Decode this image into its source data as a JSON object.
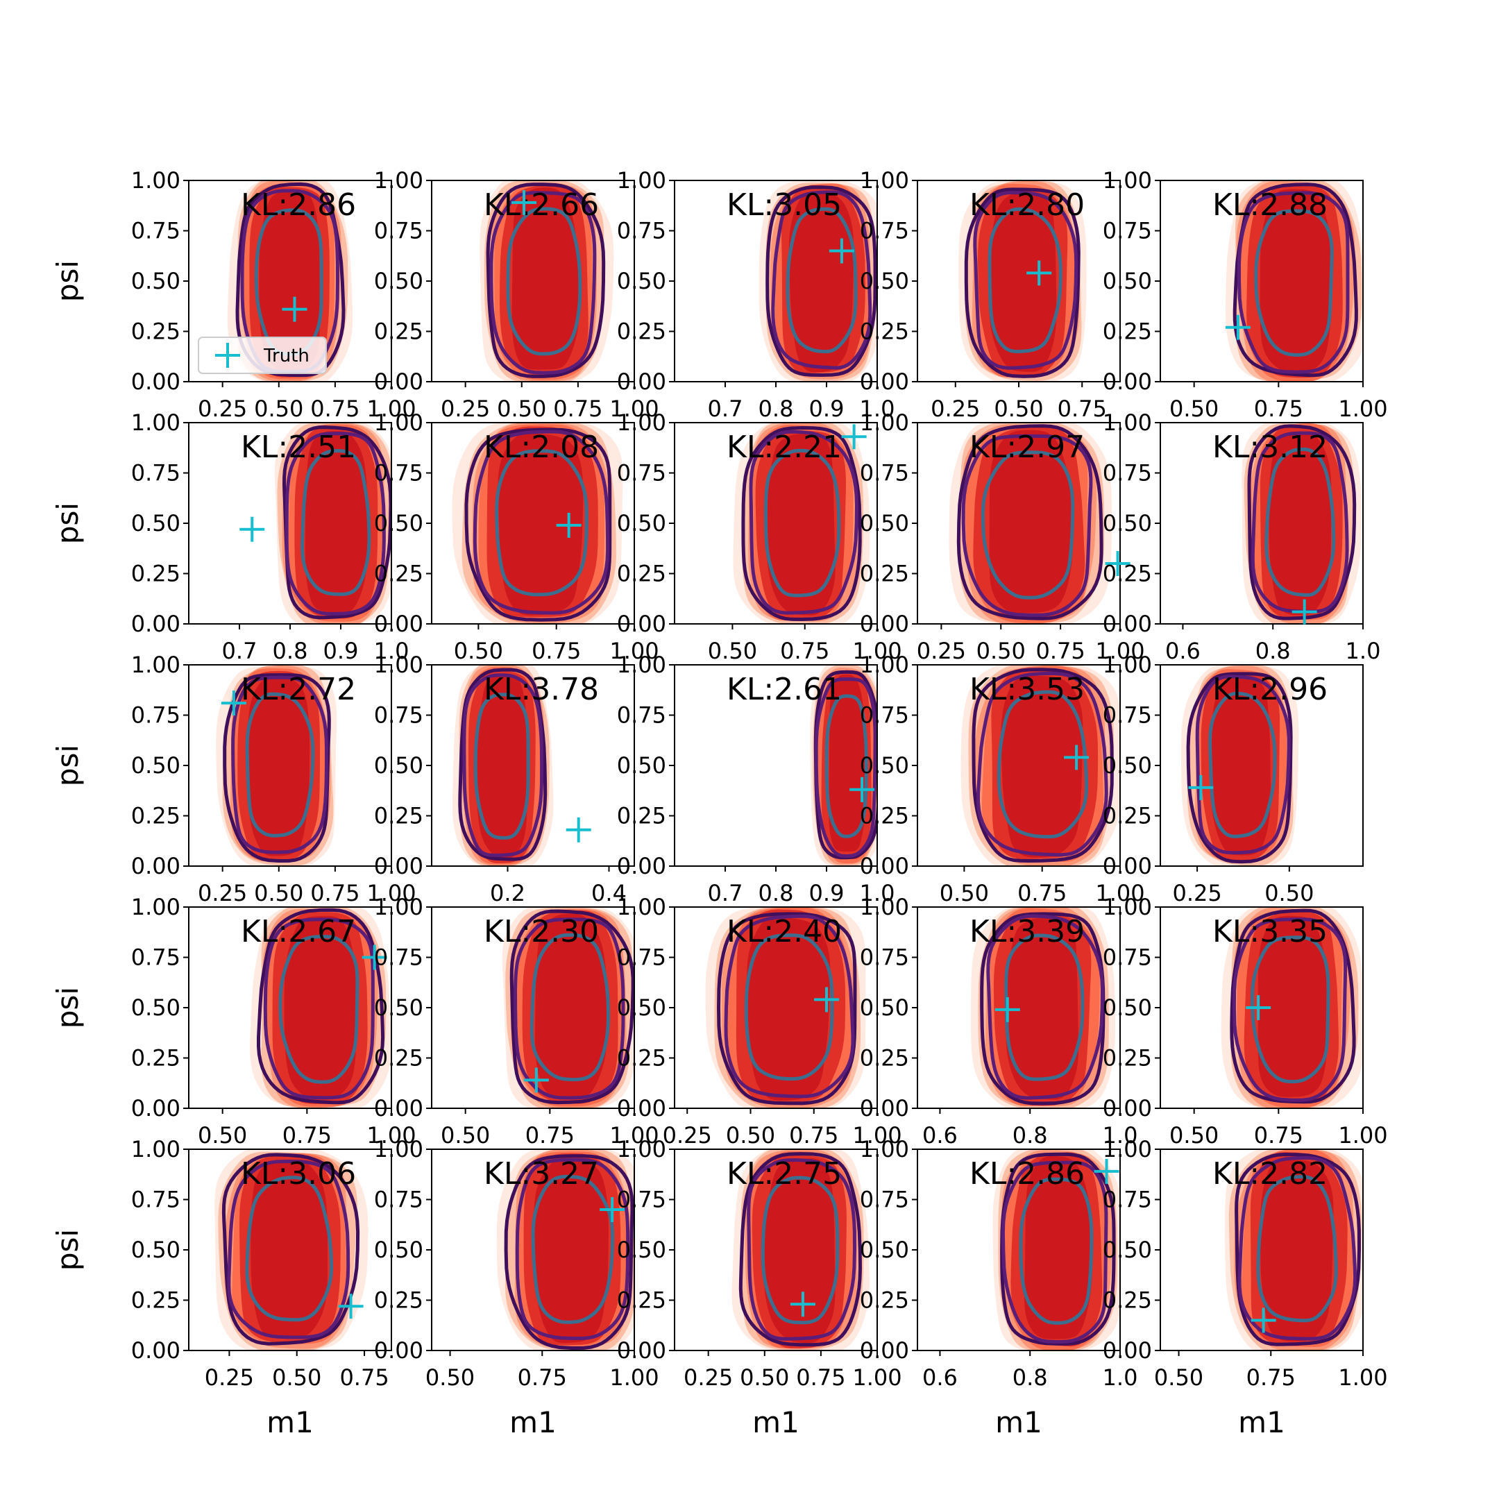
{
  "chart_data": {
    "type": "scatter",
    "layout": {
      "rows": 5,
      "cols": 5
    },
    "xlabel": "m1",
    "ylabel": "psi",
    "legend": {
      "label": "Truth",
      "placement": "lower-left",
      "panel": 0
    },
    "colors": {
      "fill_levels": [
        "#fee5d9",
        "#fcbba1",
        "#fc9272",
        "#fb6a4a",
        "#de2d26",
        "#cb181d"
      ],
      "outer_contour": "#3f0f5c",
      "mid_contour": "#5b1e78",
      "inner_contour": "#3c6e8f",
      "truth_marker": "#17becf"
    },
    "ylim": [
      0,
      1
    ],
    "y_ticks": [
      "0.00",
      "0.25",
      "0.50",
      "0.75",
      "1.00"
    ],
    "panels": [
      {
        "kl": "KL:2.86",
        "xlim": [
          0.1,
          1.0
        ],
        "x_ticks": [
          [
            "0.25",
            0.25
          ],
          [
            "0.50",
            0.5
          ],
          [
            "0.75",
            0.75
          ],
          [
            "1.00",
            1.0
          ]
        ],
        "truth": [
          0.57,
          0.36
        ],
        "center": [
          0.55,
          0.5
        ],
        "half_width": [
          0.22,
          0.46
        ]
      },
      {
        "kl": "KL:2.66",
        "xlim": [
          0.1,
          1.0
        ],
        "x_ticks": [
          [
            "0.25",
            0.25
          ],
          [
            "0.50",
            0.5
          ],
          [
            "0.75",
            0.75
          ],
          [
            "1.00",
            1.0
          ]
        ],
        "truth": [
          0.51,
          0.89
        ],
        "center": [
          0.6,
          0.5
        ],
        "half_width": [
          0.24,
          0.46
        ]
      },
      {
        "kl": "KL:3.05",
        "xlim": [
          0.6,
          1.0
        ],
        "x_ticks": [
          [
            "0.7",
            0.7
          ],
          [
            "0.8",
            0.8
          ],
          [
            "0.9",
            0.9
          ],
          [
            "1.0",
            1.0
          ]
        ],
        "truth": [
          0.93,
          0.65
        ],
        "center": [
          0.89,
          0.5
        ],
        "half_width": [
          0.1,
          0.45
        ]
      },
      {
        "kl": "KL:2.80",
        "xlim": [
          0.1,
          0.9
        ],
        "x_ticks": [
          [
            "0.25",
            0.25
          ],
          [
            "0.50",
            0.5
          ],
          [
            "0.75",
            0.75
          ]
        ],
        "truth": [
          0.58,
          0.54
        ],
        "center": [
          0.52,
          0.5
        ],
        "half_width": [
          0.21,
          0.45
        ]
      },
      {
        "kl": "KL:2.88",
        "xlim": [
          0.4,
          1.0
        ],
        "x_ticks": [
          [
            "0.50",
            0.5
          ],
          [
            "0.75",
            0.75
          ],
          [
            "1.00",
            1.0
          ]
        ],
        "truth": [
          0.63,
          0.27
        ],
        "center": [
          0.8,
          0.5
        ],
        "half_width": [
          0.17,
          0.46
        ]
      },
      {
        "kl": "KL:2.51",
        "xlim": [
          0.6,
          1.0
        ],
        "x_ticks": [
          [
            "0.7",
            0.7
          ],
          [
            "0.8",
            0.8
          ],
          [
            "0.9",
            0.9
          ],
          [
            "1.0",
            1.0
          ]
        ],
        "truth": [
          0.725,
          0.47
        ],
        "center": [
          0.89,
          0.5
        ],
        "half_width": [
          0.1,
          0.46
        ]
      },
      {
        "kl": "KL:2.08",
        "xlim": [
          0.35,
          1.0
        ],
        "x_ticks": [
          [
            "0.50",
            0.5
          ],
          [
            "0.75",
            0.75
          ],
          [
            "1.00",
            1.0
          ]
        ],
        "truth": [
          0.79,
          0.49
        ],
        "center": [
          0.7,
          0.5
        ],
        "half_width": [
          0.22,
          0.46
        ]
      },
      {
        "kl": "KL:2.21",
        "xlim": [
          0.3,
          1.0
        ],
        "x_ticks": [
          [
            "0.50",
            0.5
          ],
          [
            "0.75",
            0.75
          ],
          [
            "1.00",
            1.0
          ]
        ],
        "truth": [
          0.92,
          0.93
        ],
        "center": [
          0.74,
          0.5
        ],
        "half_width": [
          0.19,
          0.46
        ]
      },
      {
        "kl": "KL:2.97",
        "xlim": [
          0.15,
          1.0
        ],
        "x_ticks": [
          [
            "0.25",
            0.25
          ],
          [
            "0.50",
            0.5
          ],
          [
            "0.75",
            0.75
          ],
          [
            "1.00",
            1.0
          ]
        ],
        "truth": [
          0.99,
          0.3
        ],
        "center": [
          0.62,
          0.5
        ],
        "half_width": [
          0.28,
          0.46
        ]
      },
      {
        "kl": "KL:3.12",
        "xlim": [
          0.55,
          1.0
        ],
        "x_ticks": [
          [
            "0.6",
            0.6
          ],
          [
            "0.8",
            0.8
          ],
          [
            "1.0",
            1.0
          ]
        ],
        "truth": [
          0.87,
          0.06
        ],
        "center": [
          0.86,
          0.5
        ],
        "half_width": [
          0.11,
          0.46
        ]
      },
      {
        "kl": "KL:2.72",
        "xlim": [
          0.1,
          1.0
        ],
        "x_ticks": [
          [
            "0.25",
            0.25
          ],
          [
            "0.50",
            0.5
          ],
          [
            "0.75",
            0.75
          ],
          [
            "1.00",
            1.0
          ]
        ],
        "truth": [
          0.3,
          0.81
        ],
        "center": [
          0.5,
          0.5
        ],
        "half_width": [
          0.22,
          0.45
        ]
      },
      {
        "kl": "KL:3.78",
        "xlim": [
          0.05,
          0.45
        ],
        "x_ticks": [
          [
            "0.2",
            0.2
          ],
          [
            "0.4",
            0.4
          ]
        ],
        "truth": [
          0.34,
          0.18
        ],
        "center": [
          0.19,
          0.5
        ],
        "half_width": [
          0.08,
          0.46
        ]
      },
      {
        "kl": "KL:2.61",
        "xlim": [
          0.6,
          1.0
        ],
        "x_ticks": [
          [
            "0.7",
            0.7
          ],
          [
            "0.8",
            0.8
          ],
          [
            "0.9",
            0.9
          ],
          [
            "1.0",
            1.0
          ]
        ],
        "truth": [
          0.97,
          0.38
        ],
        "center": [
          0.94,
          0.5
        ],
        "half_width": [
          0.06,
          0.45
        ]
      },
      {
        "kl": "KL:3.53",
        "xlim": [
          0.35,
          1.0
        ],
        "x_ticks": [
          [
            "0.50",
            0.5
          ],
          [
            "0.75",
            0.75
          ],
          [
            "1.00",
            1.0
          ]
        ],
        "truth": [
          0.86,
          0.54
        ],
        "center": [
          0.75,
          0.5
        ],
        "half_width": [
          0.21,
          0.46
        ]
      },
      {
        "kl": "KL:2.96",
        "xlim": [
          0.15,
          0.7
        ],
        "x_ticks": [
          [
            "0.25",
            0.25
          ],
          [
            "0.50",
            0.5
          ]
        ],
        "truth": [
          0.26,
          0.39
        ],
        "center": [
          0.37,
          0.5
        ],
        "half_width": [
          0.13,
          0.45
        ]
      },
      {
        "kl": "KL:2.67",
        "xlim": [
          0.4,
          1.0
        ],
        "x_ticks": [
          [
            "0.50",
            0.5
          ],
          [
            "0.75",
            0.75
          ],
          [
            "1.00",
            1.0
          ]
        ],
        "truth": [
          0.95,
          0.75
        ],
        "center": [
          0.79,
          0.5
        ],
        "half_width": [
          0.17,
          0.46
        ]
      },
      {
        "kl": "KL:2.30",
        "xlim": [
          0.4,
          1.0
        ],
        "x_ticks": [
          [
            "0.50",
            0.5
          ],
          [
            "0.75",
            0.75
          ],
          [
            "1.00",
            1.0
          ]
        ],
        "truth": [
          0.71,
          0.14
        ],
        "center": [
          0.81,
          0.5
        ],
        "half_width": [
          0.17,
          0.46
        ]
      },
      {
        "kl": "KL:2.40",
        "xlim": [
          0.2,
          1.0
        ],
        "x_ticks": [
          [
            "0.25",
            0.25
          ],
          [
            "0.50",
            0.5
          ],
          [
            "0.75",
            0.75
          ],
          [
            "1.00",
            1.0
          ]
        ],
        "truth": [
          0.8,
          0.54
        ],
        "center": [
          0.65,
          0.5
        ],
        "half_width": [
          0.26,
          0.46
        ]
      },
      {
        "kl": "KL:3.39",
        "xlim": [
          0.55,
          1.0
        ],
        "x_ticks": [
          [
            "0.6",
            0.6
          ],
          [
            "0.8",
            0.8
          ],
          [
            "1.0",
            1.0
          ]
        ],
        "truth": [
          0.75,
          0.49
        ],
        "center": [
          0.83,
          0.5
        ],
        "half_width": [
          0.13,
          0.46
        ]
      },
      {
        "kl": "KL:3.35",
        "xlim": [
          0.4,
          1.0
        ],
        "x_ticks": [
          [
            "0.50",
            0.5
          ],
          [
            "0.75",
            0.75
          ],
          [
            "1.00",
            1.0
          ]
        ],
        "truth": [
          0.69,
          0.5
        ],
        "center": [
          0.79,
          0.5
        ],
        "half_width": [
          0.17,
          0.46
        ]
      },
      {
        "kl": "KL:3.06",
        "xlim": [
          0.1,
          0.85
        ],
        "x_ticks": [
          [
            "0.25",
            0.25
          ],
          [
            "0.50",
            0.5
          ],
          [
            "0.75",
            0.75
          ]
        ],
        "truth": [
          0.7,
          0.22
        ],
        "center": [
          0.47,
          0.5
        ],
        "half_width": [
          0.23,
          0.45
        ]
      },
      {
        "kl": "KL:3.27",
        "xlim": [
          0.45,
          1.0
        ],
        "x_ticks": [
          [
            "0.50",
            0.5
          ],
          [
            "0.75",
            0.75
          ],
          [
            "1.00",
            1.0
          ]
        ],
        "truth": [
          0.94,
          0.7
        ],
        "center": [
          0.83,
          0.5
        ],
        "half_width": [
          0.16,
          0.46
        ]
      },
      {
        "kl": "KL:2.75",
        "xlim": [
          0.1,
          1.0
        ],
        "x_ticks": [
          [
            "0.25",
            0.25
          ],
          [
            "0.50",
            0.5
          ],
          [
            "0.75",
            0.75
          ],
          [
            "1.00",
            1.0
          ]
        ],
        "truth": [
          0.67,
          0.23
        ],
        "center": [
          0.66,
          0.5
        ],
        "half_width": [
          0.25,
          0.46
        ]
      },
      {
        "kl": "KL:2.86",
        "xlim": [
          0.55,
          1.0
        ],
        "x_ticks": [
          [
            "0.6",
            0.6
          ],
          [
            "0.8",
            0.8
          ],
          [
            "1.0",
            1.0
          ]
        ],
        "truth": [
          0.97,
          0.89
        ],
        "center": [
          0.86,
          0.5
        ],
        "half_width": [
          0.12,
          0.46
        ]
      },
      {
        "kl": "KL:2.82",
        "xlim": [
          0.45,
          1.0
        ],
        "x_ticks": [
          [
            "0.50",
            0.5
          ],
          [
            "0.75",
            0.75
          ],
          [
            "1.00",
            1.0
          ]
        ],
        "truth": [
          0.73,
          0.15
        ],
        "center": [
          0.82,
          0.5
        ],
        "half_width": [
          0.16,
          0.46
        ]
      }
    ]
  }
}
